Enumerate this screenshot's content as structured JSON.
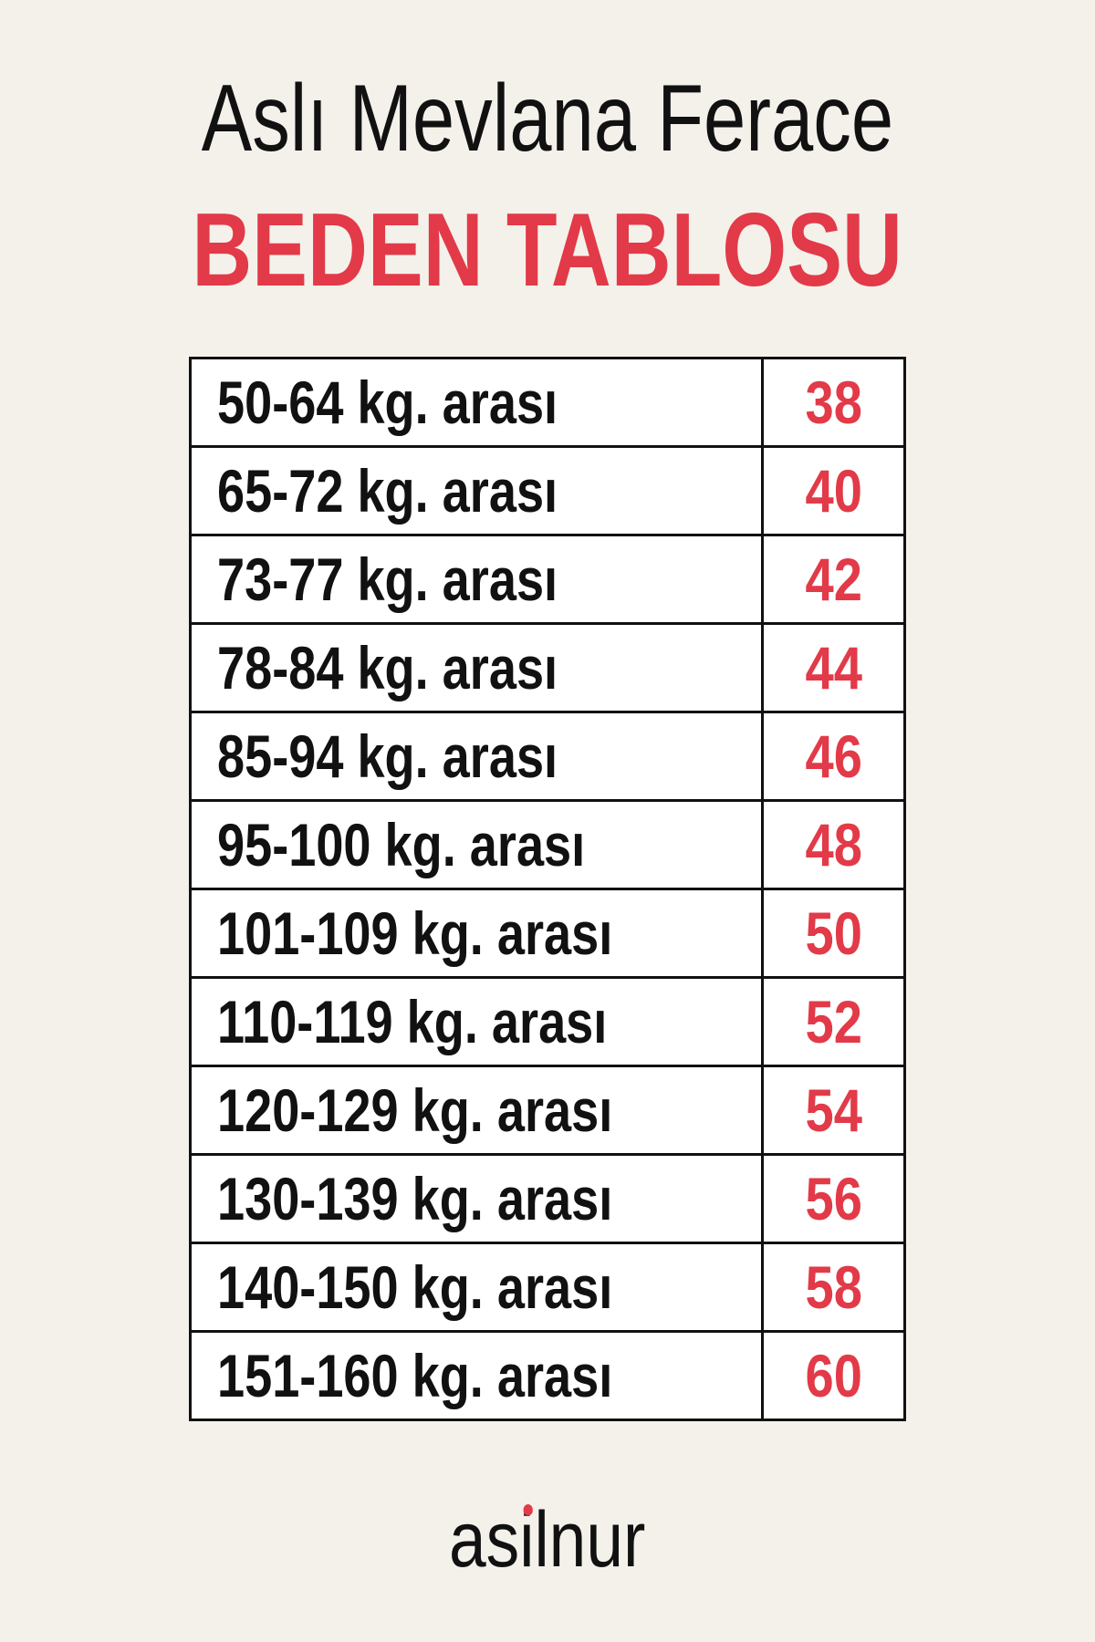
{
  "header": {
    "title": "Aslı Mevlana Ferace",
    "subtitle": "BEDEN TABLOSU"
  },
  "size_table": {
    "rows": [
      {
        "range": "50-64 kg. arası",
        "size": "38"
      },
      {
        "range": "65-72 kg. arası",
        "size": "40"
      },
      {
        "range": "73-77 kg. arası",
        "size": "42"
      },
      {
        "range": "78-84 kg. arası",
        "size": "44"
      },
      {
        "range": "85-94 kg. arası",
        "size": "46"
      },
      {
        "range": "95-100 kg. arası",
        "size": "48"
      },
      {
        "range": "101-109 kg. arası",
        "size": "50"
      },
      {
        "range": "110-119 kg. arası",
        "size": "52"
      },
      {
        "range": "120-129 kg. arası",
        "size": "54"
      },
      {
        "range": "130-139 kg. arası",
        "size": "56"
      },
      {
        "range": "140-150 kg. arası",
        "size": "58"
      },
      {
        "range": "151-160 kg. arası",
        "size": "60"
      }
    ]
  },
  "brand": {
    "logo_text": "asilnur"
  },
  "colors": {
    "accent": "#e23a48",
    "background": "#f4f1eb",
    "text": "#111111"
  }
}
